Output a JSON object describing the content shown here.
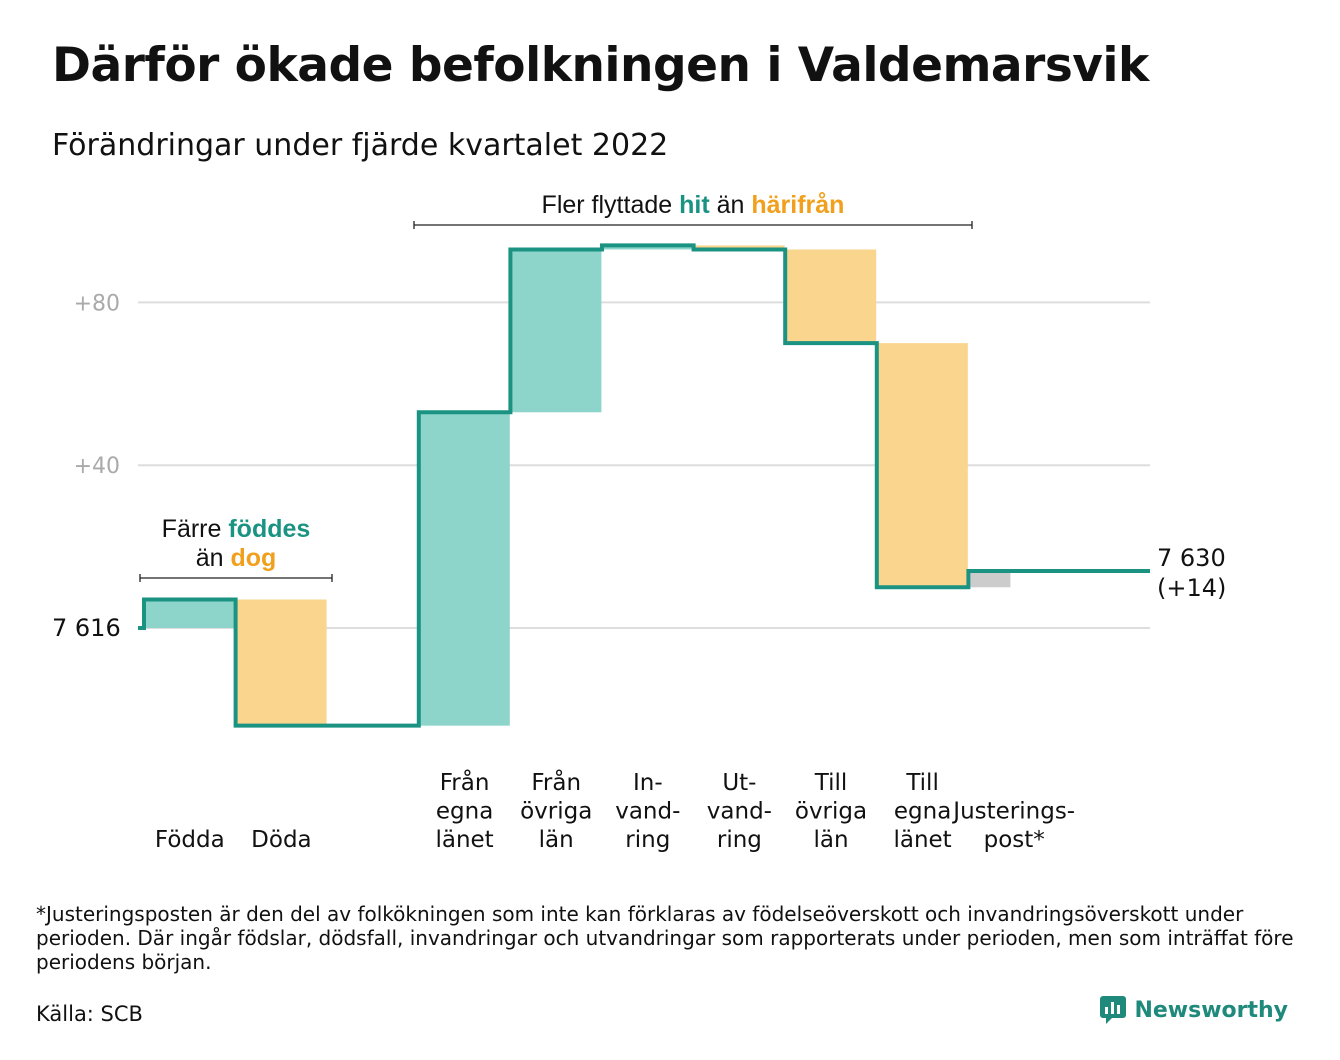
{
  "title": "Därför ökade befolkningen i Valdemarsvik",
  "subtitle": "Förändringar under fjärde kvartalet 2022",
  "chart_data": {
    "type": "waterfall",
    "base_value": 7616,
    "base_label": "7 616",
    "end_value": 7630,
    "end_label": "7 630",
    "end_change_label": "(+14)",
    "ylim": [
      -24,
      100
    ],
    "yticks": [
      {
        "value": 40,
        "label": "+40"
      },
      {
        "value": 80,
        "label": "+80"
      }
    ],
    "steps": [
      {
        "lines": [
          "Födda"
        ],
        "delta": 7,
        "kind": "in"
      },
      {
        "lines": [
          "Döda"
        ],
        "delta": -31,
        "kind": "out"
      },
      {
        "lines": [],
        "delta": 0,
        "kind": "none"
      },
      {
        "lines": [
          "Från",
          "egna",
          "länet"
        ],
        "delta": 77,
        "kind": "in"
      },
      {
        "lines": [
          "Från",
          "övriga",
          "län"
        ],
        "delta": 40,
        "kind": "in"
      },
      {
        "lines": [
          "In-",
          "vand-",
          "ring"
        ],
        "delta": 1,
        "kind": "in"
      },
      {
        "lines": [
          "Ut-",
          "vand-",
          "ring"
        ],
        "delta": -1,
        "kind": "out"
      },
      {
        "lines": [
          "Till",
          "övriga",
          "län"
        ],
        "delta": -23,
        "kind": "out"
      },
      {
        "lines": [
          "Till",
          "egna",
          "länet"
        ],
        "delta": -60,
        "kind": "out"
      },
      {
        "lines": [
          "Justerings-",
          "post*"
        ],
        "delta": 4,
        "kind": "adjustment"
      }
    ],
    "annotations": [
      {
        "parts": [
          {
            "lines": [
              [
                {
                  "text": "Färre ",
                  "kind": "plain"
                },
                {
                  "text": "föddes",
                  "kind": "in"
                }
              ],
              [
                {
                  "text": "än ",
                  "kind": "plain"
                },
                {
                  "text": "dog",
                  "kind": "out"
                }
              ]
            ]
          }
        ],
        "from_step": 0,
        "to_step": 1
      },
      {
        "parts": [
          {
            "lines": [
              [
                {
                  "text": "Fler flyttade ",
                  "kind": "plain"
                },
                {
                  "text": "hit",
                  "kind": "in"
                },
                {
                  "text": " än ",
                  "kind": "plain"
                },
                {
                  "text": "härifrån",
                  "kind": "out"
                }
              ]
            ]
          }
        ],
        "from_step": 3,
        "to_step": 8
      }
    ],
    "colors": {
      "line": "#1b9383",
      "in": "#8dd4cb",
      "in_text": "#1b9383",
      "out": "#fad58e",
      "out_text": "#f0a01c",
      "adjustment": "#cccccc",
      "grid": "#dddddd",
      "tick": "#aaaaaa"
    }
  },
  "footnote": "*Justeringsposten är den del av folkökningen som inte kan förklaras av födelseöverskott och invandringsöverskott under perioden. Där ingår födslar, dödsfall, invandringar och utvandringar som rapporterats under perioden, men som inträffat före periodens början.",
  "source": "Källa: SCB",
  "brand": "Newsworthy"
}
